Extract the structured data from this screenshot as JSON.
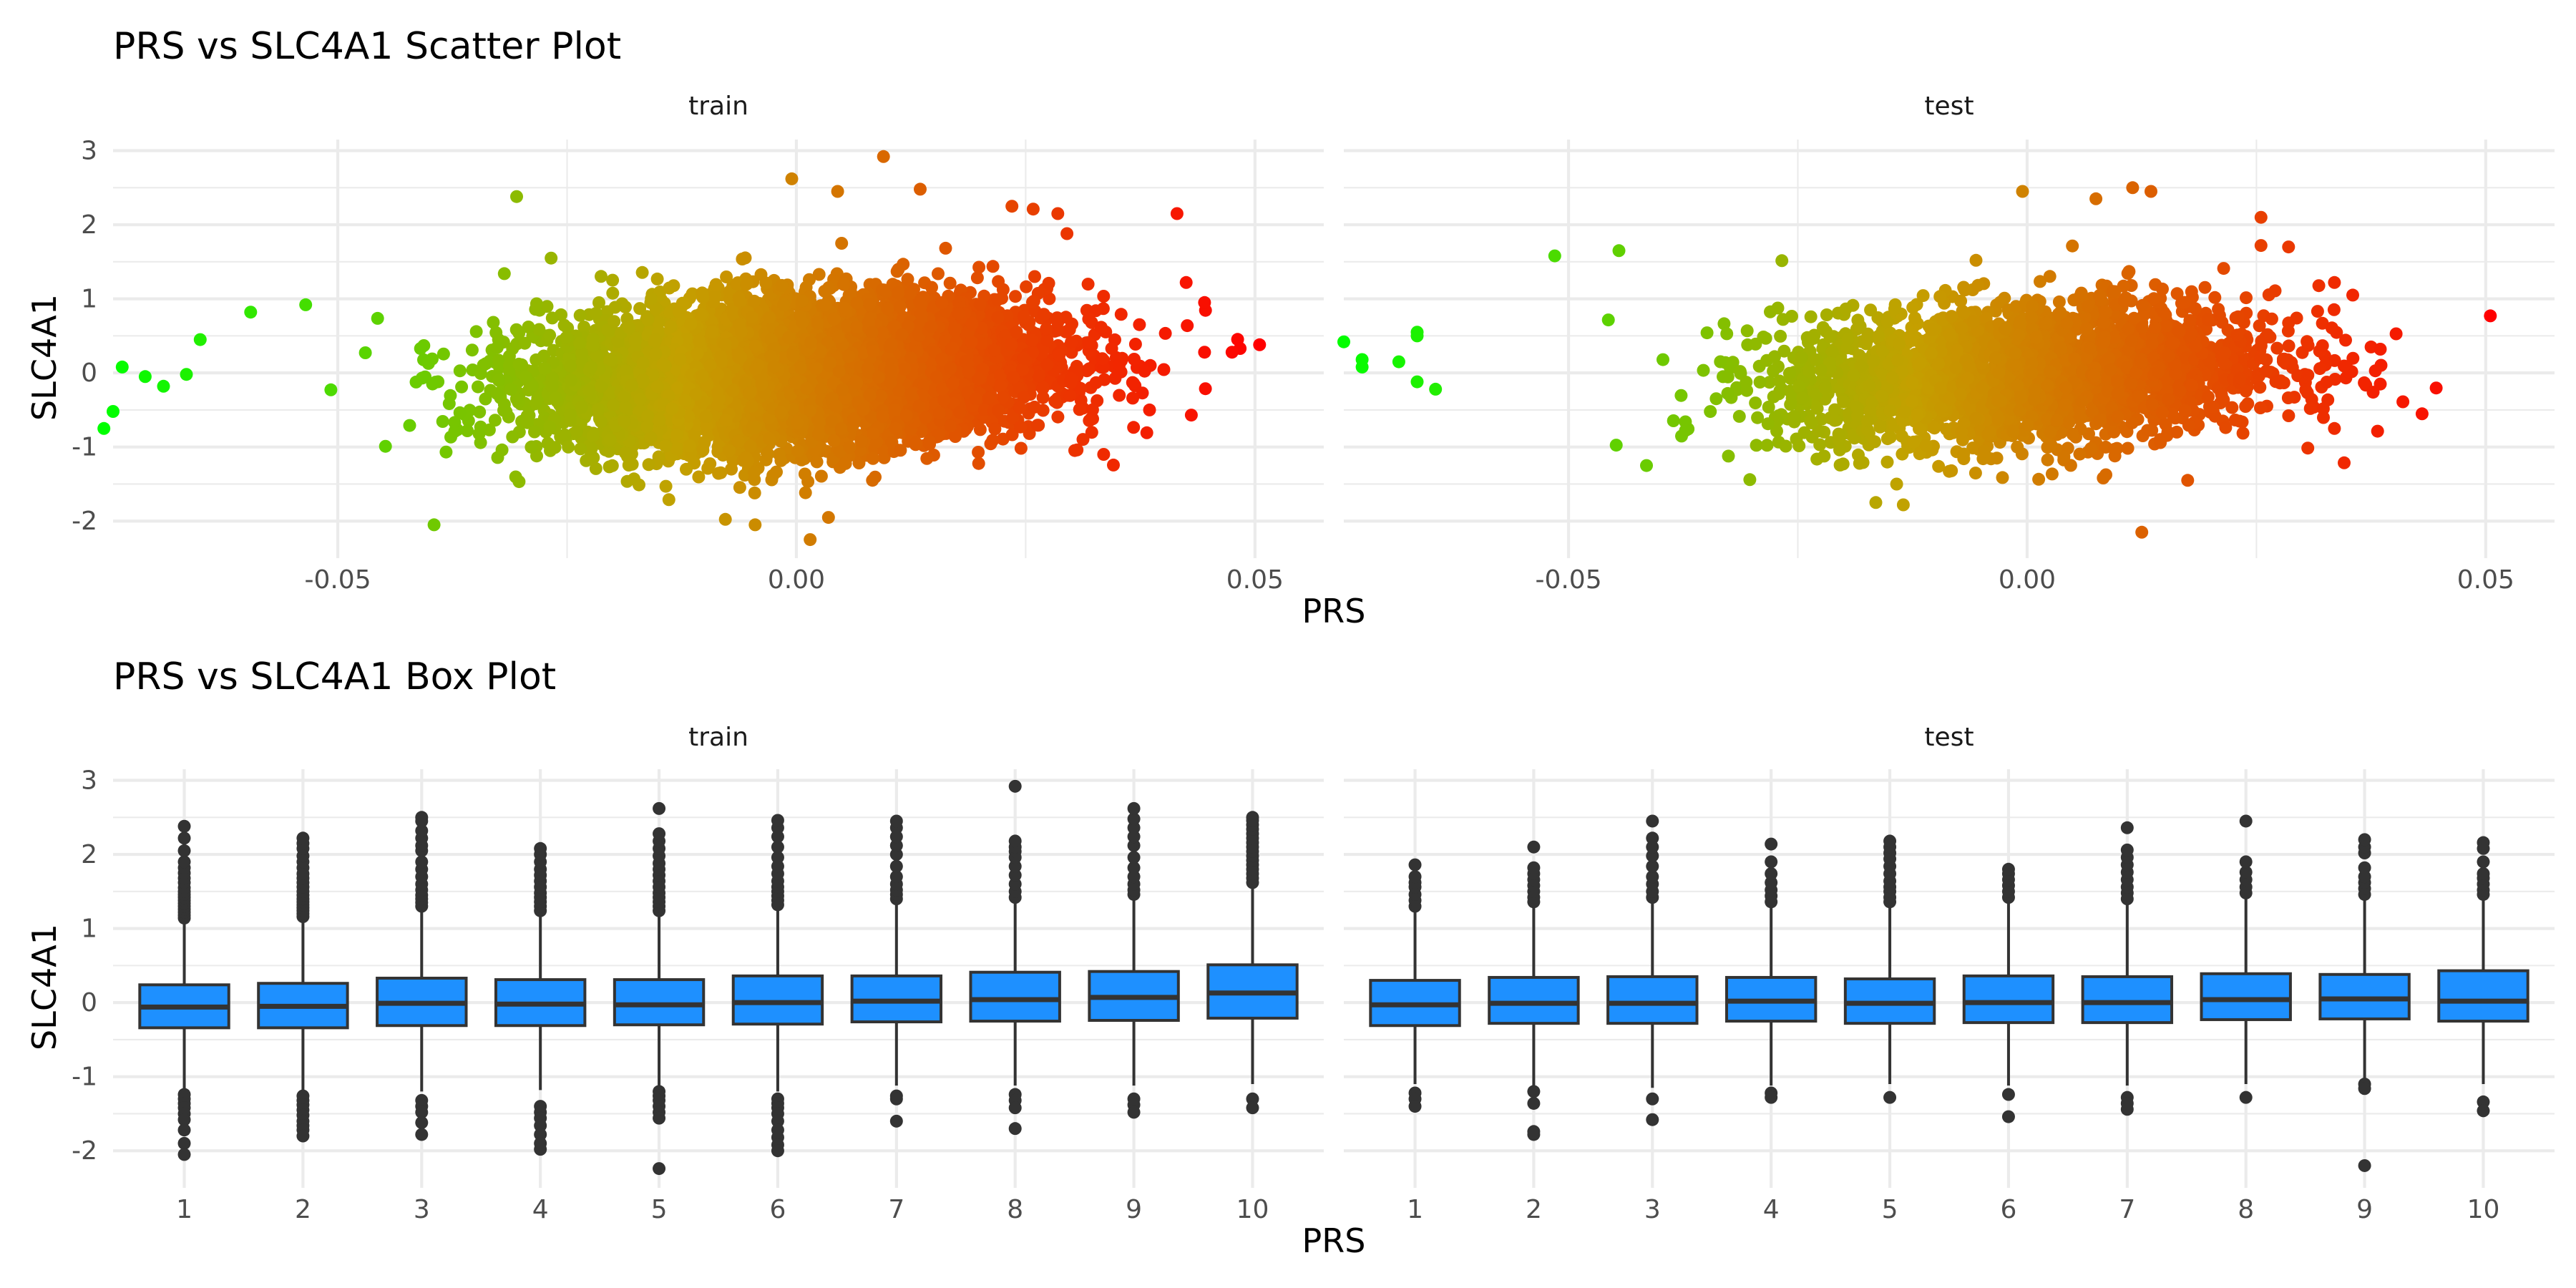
{
  "figure": {
    "title_scatter": "PRS vs SLC4A1 Scatter Plot",
    "title_box": "PRS vs SLC4A1 Box Plot"
  },
  "colors": {
    "gradient_low": "#00ff00",
    "gradient_high": "#ff0000",
    "box_fill": "#1e90ff",
    "box_line": "#333333",
    "outlier": "#333333",
    "grid": "#ebebeb",
    "background": "#ffffff"
  },
  "chart_data": [
    {
      "type": "scatter",
      "title": "PRS vs SLC4A1 Scatter Plot",
      "xlabel": "PRS",
      "ylabel": "SLC4A1",
      "facets": [
        "train",
        "test"
      ],
      "xlim": [
        -0.0745,
        0.0575
      ],
      "ylim": [
        -2.5,
        3.15
      ],
      "x_ticks": [
        -0.05,
        0.0,
        0.05
      ],
      "x_tick_labels": [
        "-0.05",
        "0.00",
        "0.05"
      ],
      "y_ticks": [
        -2,
        -1,
        0,
        1,
        2,
        3
      ],
      "y_tick_labels": [
        "-2",
        "-1",
        "0",
        "1",
        "2",
        "3"
      ],
      "color_scale": {
        "variable": "PRS",
        "low": "#00ff00",
        "high": "#ff0000"
      },
      "grid": true,
      "legend": "none",
      "series": [
        {
          "facet": "train",
          "n_points": 6500,
          "x_mean": 0.0,
          "x_sd": 0.0135,
          "y_intercept": 0.0,
          "y_slope": 6.0,
          "y_sd": 0.48,
          "extreme_points": [
            [
              -0.0755,
              -0.75
            ],
            [
              -0.0745,
              -0.52
            ],
            [
              -0.0735,
              0.08
            ],
            [
              -0.071,
              -0.05
            ],
            [
              -0.069,
              -0.18
            ],
            [
              -0.0665,
              -0.02
            ],
            [
              -0.065,
              0.45
            ],
            [
              -0.0595,
              0.82
            ],
            [
              -0.0535,
              0.92
            ],
            [
              -0.0395,
              -2.05
            ],
            [
              -0.0305,
              2.38
            ],
            [
              0.0095,
              2.92
            ],
            [
              0.0045,
              2.45
            ],
            [
              -0.0005,
              2.62
            ],
            [
              0.0135,
              2.48
            ],
            [
              0.0235,
              2.25
            ],
            [
              0.0285,
              2.15
            ],
            [
              0.0295,
              1.88
            ],
            [
              0.0415,
              2.15
            ],
            [
              0.0425,
              1.22
            ],
            [
              0.0445,
              0.95
            ],
            [
              0.0445,
              0.28
            ],
            [
              0.0475,
              0.28
            ],
            [
              0.0505,
              0.38
            ],
            [
              0.0015,
              -2.25
            ],
            [
              -0.0045,
              -2.05
            ],
            [
              0.0035,
              -1.95
            ],
            [
              0.0335,
              -1.1
            ],
            [
              0.0385,
              -0.5
            ]
          ]
        },
        {
          "facet": "test",
          "n_points": 2700,
          "x_mean": 0.0,
          "x_sd": 0.0135,
          "y_intercept": 0.0,
          "y_slope": 6.0,
          "y_sd": 0.47,
          "extreme_points": [
            [
              -0.0745,
              0.42
            ],
            [
              -0.0725,
              0.18
            ],
            [
              -0.0725,
              0.08
            ],
            [
              -0.0685,
              0.15
            ],
            [
              -0.0665,
              0.55
            ],
            [
              -0.0665,
              0.5
            ],
            [
              -0.0665,
              -0.12
            ],
            [
              -0.0645,
              -0.22
            ],
            [
              -0.0515,
              1.58
            ],
            [
              -0.0445,
              1.65
            ],
            [
              -0.0415,
              -1.25
            ],
            [
              -0.0005,
              2.45
            ],
            [
              0.0115,
              2.5
            ],
            [
              0.0135,
              2.45
            ],
            [
              0.0075,
              2.35
            ],
            [
              0.0255,
              2.1
            ],
            [
              0.0255,
              1.72
            ],
            [
              0.0285,
              1.7
            ],
            [
              0.0335,
              1.22
            ],
            [
              0.0355,
              1.05
            ],
            [
              0.0375,
              0.35
            ],
            [
              0.0385,
              0.32
            ],
            [
              0.0385,
              -0.15
            ],
            [
              0.0505,
              0.77
            ],
            [
              0.0125,
              -2.15
            ],
            [
              -0.0165,
              -1.75
            ],
            [
              -0.0135,
              -1.78
            ],
            [
              0.0175,
              -1.45
            ],
            [
              0.0335,
              -0.75
            ]
          ]
        }
      ]
    },
    {
      "type": "box",
      "title": "PRS vs SLC4A1 Box Plot",
      "xlabel": "PRS",
      "ylabel": "SLC4A1",
      "facets": [
        "train",
        "test"
      ],
      "categories": [
        "1",
        "2",
        "3",
        "4",
        "5",
        "6",
        "7",
        "8",
        "9",
        "10"
      ],
      "ylim": [
        -2.5,
        3.15
      ],
      "y_ticks": [
        -2,
        -1,
        0,
        1,
        2,
        3
      ],
      "y_tick_labels": [
        "-2",
        "-1",
        "0",
        "1",
        "2",
        "3"
      ],
      "grid": true,
      "legend": "none",
      "series": [
        {
          "facet": "train",
          "boxes": [
            {
              "q1": -0.34,
              "median": -0.06,
              "q3": 0.24,
              "whisker_low": -1.2,
              "whisker_high": 1.1,
              "outliers_high": [
                1.14,
                1.18,
                1.22,
                1.26,
                1.3,
                1.34,
                1.38,
                1.42,
                1.46,
                1.5,
                1.55,
                1.62,
                1.68,
                1.75,
                1.82,
                1.9,
                2.05,
                2.22,
                2.38
              ],
              "outliers_low": [
                -1.24,
                -1.3,
                -1.36,
                -1.42,
                -1.5,
                -1.58,
                -1.72,
                -1.9,
                -2.05
              ]
            },
            {
              "q1": -0.34,
              "median": -0.05,
              "q3": 0.26,
              "whisker_low": -1.22,
              "whisker_high": 1.12,
              "outliers_high": [
                1.16,
                1.2,
                1.24,
                1.28,
                1.32,
                1.36,
                1.4,
                1.45,
                1.5,
                1.56,
                1.62,
                1.68,
                1.74,
                1.82,
                1.9,
                1.98,
                2.08,
                2.15,
                2.22
              ],
              "outliers_low": [
                -1.26,
                -1.32,
                -1.38,
                -1.45,
                -1.52,
                -1.6,
                -1.66,
                -1.72,
                -1.8
              ]
            },
            {
              "q1": -0.31,
              "median": -0.01,
              "q3": 0.33,
              "whisker_low": -1.2,
              "whisker_high": 1.25,
              "outliers_high": [
                1.3,
                1.35,
                1.4,
                1.45,
                1.52,
                1.6,
                1.7,
                1.8,
                1.9,
                2.05,
                2.12,
                2.22,
                2.32,
                2.45,
                2.5
              ],
              "outliers_low": [
                -1.32,
                -1.4,
                -1.48,
                -1.62,
                -1.78
              ]
            },
            {
              "q1": -0.31,
              "median": -0.02,
              "q3": 0.31,
              "whisker_low": -1.18,
              "whisker_high": 1.2,
              "outliers_high": [
                1.24,
                1.3,
                1.36,
                1.42,
                1.48,
                1.56,
                1.64,
                1.72,
                1.8,
                1.9,
                2.0,
                2.08
              ],
              "outliers_low": [
                -1.4,
                -1.48,
                -1.56,
                -1.66,
                -1.78,
                -1.9,
                -1.98
              ]
            },
            {
              "q1": -0.3,
              "median": -0.03,
              "q3": 0.31,
              "whisker_low": -1.16,
              "whisker_high": 1.2,
              "outliers_high": [
                1.24,
                1.3,
                1.36,
                1.42,
                1.48,
                1.56,
                1.64,
                1.72,
                1.8,
                1.88,
                1.98,
                2.08,
                2.18,
                2.28,
                2.62
              ],
              "outliers_low": [
                -1.2,
                -1.26,
                -1.32,
                -1.4,
                -1.48,
                -1.56,
                -2.24
              ]
            },
            {
              "q1": -0.29,
              "median": 0.0,
              "q3": 0.36,
              "whisker_low": -1.2,
              "whisker_high": 1.28,
              "outliers_high": [
                1.32,
                1.38,
                1.44,
                1.5,
                1.56,
                1.64,
                1.74,
                1.84,
                1.96,
                2.1,
                2.24,
                2.36,
                2.46
              ],
              "outliers_low": [
                -1.3,
                -1.36,
                -1.42,
                -1.5,
                -1.6,
                -1.72,
                -1.82,
                -1.92,
                -2.0
              ]
            },
            {
              "q1": -0.26,
              "median": 0.02,
              "q3": 0.36,
              "whisker_low": -1.12,
              "whisker_high": 1.36,
              "outliers_high": [
                1.4,
                1.46,
                1.52,
                1.6,
                1.7,
                1.84,
                2.0,
                2.12,
                2.24,
                2.36,
                2.45
              ],
              "outliers_low": [
                -1.26,
                -1.3,
                -1.6
              ]
            },
            {
              "q1": -0.25,
              "median": 0.04,
              "q3": 0.41,
              "whisker_low": -1.12,
              "whisker_high": 1.36,
              "outliers_high": [
                1.42,
                1.5,
                1.6,
                1.72,
                1.84,
                1.96,
                2.04,
                2.1,
                2.18,
                2.92
              ],
              "outliers_low": [
                -1.24,
                -1.32,
                -1.42,
                -1.7
              ]
            },
            {
              "q1": -0.24,
              "median": 0.07,
              "q3": 0.42,
              "whisker_low": -1.12,
              "whisker_high": 1.4,
              "outliers_high": [
                1.46,
                1.52,
                1.6,
                1.7,
                1.82,
                1.96,
                2.12,
                2.24,
                2.36,
                2.48,
                2.62
              ],
              "outliers_low": [
                -1.3,
                -1.38,
                -1.48
              ]
            },
            {
              "q1": -0.21,
              "median": 0.13,
              "q3": 0.51,
              "whisker_low": -1.1,
              "whisker_high": 1.58,
              "outliers_high": [
                1.62,
                1.68,
                1.74,
                1.8,
                1.86,
                1.92,
                1.98,
                2.04,
                2.1,
                2.16,
                2.22,
                2.28,
                2.34,
                2.4,
                2.46,
                2.5
              ],
              "outliers_low": [
                -1.3,
                -1.42
              ]
            }
          ]
        },
        {
          "facet": "test",
          "boxes": [
            {
              "q1": -0.31,
              "median": -0.03,
              "q3": 0.3,
              "whisker_low": -1.1,
              "whisker_high": 1.22,
              "outliers_high": [
                1.3,
                1.38,
                1.46,
                1.56,
                1.62,
                1.7,
                1.86
              ],
              "outliers_low": [
                -1.22,
                -1.3,
                -1.4
              ]
            },
            {
              "q1": -0.28,
              "median": -0.01,
              "q3": 0.34,
              "whisker_low": -1.12,
              "whisker_high": 1.28,
              "outliers_high": [
                1.36,
                1.42,
                1.5,
                1.58,
                1.66,
                1.74,
                1.82,
                2.1
              ],
              "outliers_low": [
                -1.2,
                -1.36,
                -1.74,
                -1.78
              ]
            },
            {
              "q1": -0.28,
              "median": -0.01,
              "q3": 0.35,
              "whisker_low": -1.15,
              "whisker_high": 1.34,
              "outliers_high": [
                1.42,
                1.5,
                1.6,
                1.7,
                1.84,
                1.98,
                2.1,
                2.22,
                2.45
              ],
              "outliers_low": [
                -1.3,
                -1.58
              ]
            },
            {
              "q1": -0.25,
              "median": 0.02,
              "q3": 0.34,
              "whisker_low": -1.12,
              "whisker_high": 1.3,
              "outliers_high": [
                1.36,
                1.44,
                1.52,
                1.62,
                1.74,
                1.9,
                2.14
              ],
              "outliers_low": [
                -1.22,
                -1.28
              ]
            },
            {
              "q1": -0.28,
              "median": -0.01,
              "q3": 0.32,
              "whisker_low": -1.1,
              "whisker_high": 1.3,
              "outliers_high": [
                1.36,
                1.42,
                1.5,
                1.56,
                1.64,
                1.74,
                1.84,
                1.94,
                2.02,
                2.1,
                2.18
              ],
              "outliers_low": [
                -1.28
              ]
            },
            {
              "q1": -0.27,
              "median": 0.0,
              "q3": 0.36,
              "whisker_low": -1.12,
              "whisker_high": 1.36,
              "outliers_high": [
                1.42,
                1.5,
                1.58,
                1.66,
                1.74,
                1.8
              ],
              "outliers_low": [
                -1.24,
                -1.54
              ]
            },
            {
              "q1": -0.27,
              "median": 0.0,
              "q3": 0.35,
              "whisker_low": -1.12,
              "whisker_high": 1.34,
              "outliers_high": [
                1.4,
                1.48,
                1.56,
                1.66,
                1.76,
                1.86,
                1.96,
                2.06,
                2.36
              ],
              "outliers_low": [
                -1.28,
                -1.36,
                -1.44
              ]
            },
            {
              "q1": -0.23,
              "median": 0.04,
              "q3": 0.39,
              "whisker_low": -1.1,
              "whisker_high": 1.4,
              "outliers_high": [
                1.48,
                1.56,
                1.66,
                1.76,
                1.9,
                2.45
              ],
              "outliers_low": [
                -1.28
              ]
            },
            {
              "q1": -0.22,
              "median": 0.05,
              "q3": 0.38,
              "whisker_low": -1.04,
              "whisker_high": 1.38,
              "outliers_high": [
                1.46,
                1.54,
                1.62,
                1.7,
                1.82,
                2.02,
                2.1,
                2.2
              ],
              "outliers_low": [
                -1.1,
                -1.16,
                -2.2
              ]
            },
            {
              "q1": -0.25,
              "median": 0.02,
              "q3": 0.43,
              "whisker_low": -1.1,
              "whisker_high": 1.4,
              "outliers_high": [
                1.46,
                1.52,
                1.6,
                1.68,
                1.74,
                1.9,
                2.08,
                2.16
              ],
              "outliers_low": [
                -1.34,
                -1.46
              ]
            }
          ]
        }
      ]
    }
  ]
}
